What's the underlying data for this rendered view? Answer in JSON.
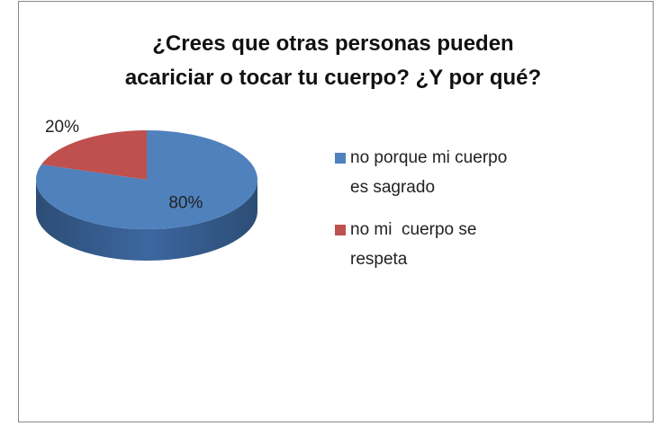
{
  "chart_data": {
    "type": "pie",
    "title": "¿Crees que otras personas pueden\nacariciar o tocar tu cuerpo? ¿Y por qué?",
    "categories": [
      "no porque mi cuerpo es sagrado",
      "no mi  cuerpo se respeta"
    ],
    "values": [
      80,
      20
    ],
    "value_labels": [
      "80%",
      "20%"
    ],
    "colors": [
      "#4f81bd",
      "#c0504d"
    ],
    "legend": "right"
  }
}
